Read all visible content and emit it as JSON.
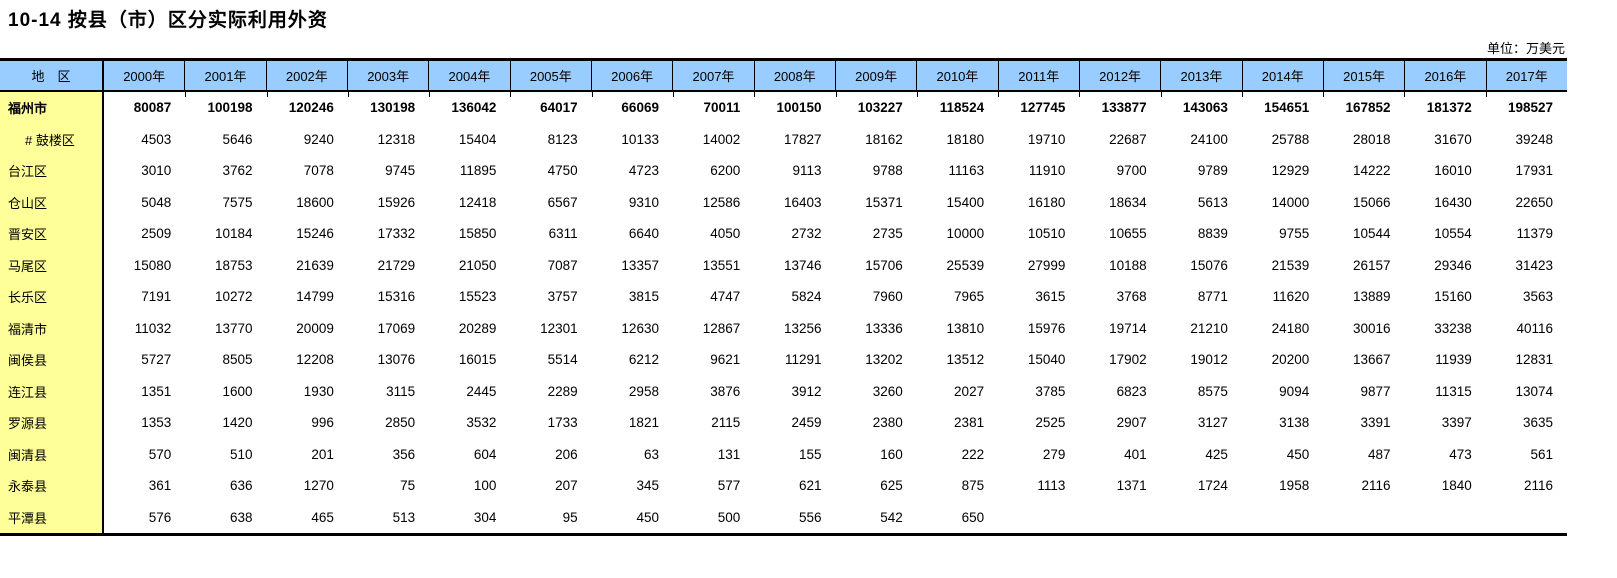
{
  "title": "10-14 按县（市）区分实际利用外资",
  "unit_label": "单位：万美元",
  "colors": {
    "header_bg": "#99CCFF",
    "region_bg": "#FFFF99",
    "border": "#000000",
    "text": "#000000"
  },
  "table": {
    "region_header": "地　区",
    "years": [
      "2000年",
      "2001年",
      "2002年",
      "2003年",
      "2004年",
      "2005年",
      "2006年",
      "2007年",
      "2008年",
      "2009年",
      "2010年",
      "2011年",
      "2012年",
      "2013年",
      "2014年",
      "2015年",
      "2016年",
      "2017年"
    ],
    "rows": [
      {
        "region": "福州市",
        "bold": true,
        "indent": false,
        "values": [
          80087,
          100198,
          120246,
          130198,
          136042,
          64017,
          66069,
          70011,
          100150,
          103227,
          118524,
          127745,
          133877,
          143063,
          154651,
          167852,
          181372,
          198527
        ]
      },
      {
        "region": "# 鼓楼区",
        "bold": false,
        "indent": true,
        "values": [
          4503,
          5646,
          9240,
          12318,
          15404,
          8123,
          10133,
          14002,
          17827,
          18162,
          18180,
          19710,
          22687,
          24100,
          25788,
          28018,
          31670,
          39248
        ]
      },
      {
        "region": "台江区",
        "bold": false,
        "indent": false,
        "values": [
          3010,
          3762,
          7078,
          9745,
          11895,
          4750,
          4723,
          6200,
          9113,
          9788,
          11163,
          11910,
          9700,
          9789,
          12929,
          14222,
          16010,
          17931
        ]
      },
      {
        "region": "仓山区",
        "bold": false,
        "indent": false,
        "values": [
          5048,
          7575,
          18600,
          15926,
          12418,
          6567,
          9310,
          12586,
          16403,
          15371,
          15400,
          16180,
          18634,
          5613,
          14000,
          15066,
          16430,
          22650
        ]
      },
      {
        "region": "晋安区",
        "bold": false,
        "indent": false,
        "values": [
          2509,
          10184,
          15246,
          17332,
          15850,
          6311,
          6640,
          4050,
          2732,
          2735,
          10000,
          10510,
          10655,
          8839,
          9755,
          10544,
          10554,
          11379
        ]
      },
      {
        "region": "马尾区",
        "bold": false,
        "indent": false,
        "values": [
          15080,
          18753,
          21639,
          21729,
          21050,
          7087,
          13357,
          13551,
          13746,
          15706,
          25539,
          27999,
          10188,
          15076,
          21539,
          26157,
          29346,
          31423
        ]
      },
      {
        "region": "长乐区",
        "bold": false,
        "indent": false,
        "values": [
          7191,
          10272,
          14799,
          15316,
          15523,
          3757,
          3815,
          4747,
          5824,
          7960,
          7965,
          3615,
          3768,
          8771,
          11620,
          13889,
          15160,
          3563
        ]
      },
      {
        "region": "福清市",
        "bold": false,
        "indent": false,
        "values": [
          11032,
          13770,
          20009,
          17069,
          20289,
          12301,
          12630,
          12867,
          13256,
          13336,
          13810,
          15976,
          19714,
          21210,
          24180,
          30016,
          33238,
          40116
        ]
      },
      {
        "region": "闽侯县",
        "bold": false,
        "indent": false,
        "values": [
          5727,
          8505,
          12208,
          13076,
          16015,
          5514,
          6212,
          9621,
          11291,
          13202,
          13512,
          15040,
          17902,
          19012,
          20200,
          13667,
          11939,
          12831
        ]
      },
      {
        "region": "连江县",
        "bold": false,
        "indent": false,
        "values": [
          1351,
          1600,
          1930,
          3115,
          2445,
          2289,
          2958,
          3876,
          3912,
          3260,
          2027,
          3785,
          6823,
          8575,
          9094,
          9877,
          11315,
          13074
        ]
      },
      {
        "region": "罗源县",
        "bold": false,
        "indent": false,
        "values": [
          1353,
          1420,
          996,
          2850,
          3532,
          1733,
          1821,
          2115,
          2459,
          2380,
          2381,
          2525,
          2907,
          3127,
          3138,
          3391,
          3397,
          3635
        ]
      },
      {
        "region": "闽清县",
        "bold": false,
        "indent": false,
        "values": [
          570,
          510,
          201,
          356,
          604,
          206,
          63,
          131,
          155,
          160,
          222,
          279,
          401,
          425,
          450,
          487,
          473,
          561
        ]
      },
      {
        "region": "永泰县",
        "bold": false,
        "indent": false,
        "values": [
          361,
          636,
          1270,
          75,
          100,
          207,
          345,
          577,
          621,
          625,
          875,
          1113,
          1371,
          1724,
          1958,
          2116,
          1840,
          2116
        ]
      },
      {
        "region": "平潭县",
        "bold": false,
        "indent": false,
        "values": [
          576,
          638,
          465,
          513,
          304,
          95,
          450,
          500,
          556,
          542,
          650,
          null,
          null,
          null,
          null,
          null,
          null,
          null
        ]
      }
    ]
  }
}
